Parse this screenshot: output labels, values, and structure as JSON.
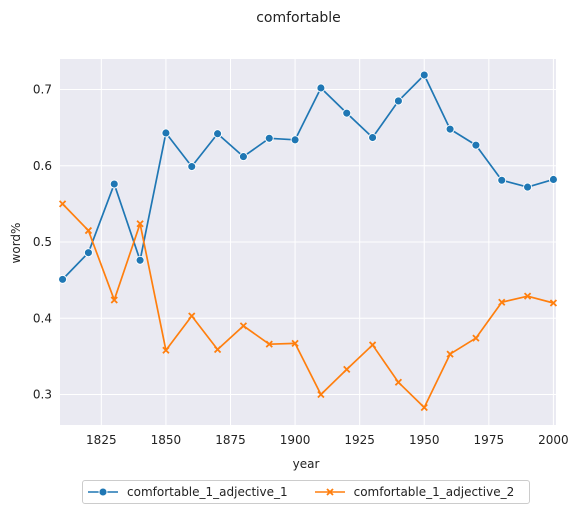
{
  "chart_data": {
    "type": "line",
    "title": "comfortable",
    "xlabel": "year",
    "ylabel": "word%",
    "x": [
      1810,
      1820,
      1830,
      1840,
      1850,
      1860,
      1870,
      1880,
      1890,
      1900,
      1910,
      1920,
      1930,
      1940,
      1950,
      1960,
      1970,
      1980,
      1990,
      2000
    ],
    "xlim": [
      1809,
      2001
    ],
    "ylim": [
      0.26,
      0.74
    ],
    "xticks": [
      1825,
      1850,
      1875,
      1900,
      1925,
      1950,
      1975,
      2000
    ],
    "yticks": [
      0.3,
      0.4,
      0.5,
      0.6,
      0.7
    ],
    "xtick_labels": [
      "1825",
      "1850",
      "1875",
      "1900",
      "1925",
      "1950",
      "1975",
      "2000"
    ],
    "ytick_labels": [
      "0.3",
      "0.4",
      "0.5",
      "0.6",
      "0.7"
    ],
    "grid": true,
    "legend_position": "bottom-center",
    "series": [
      {
        "name": "comfortable_1_adjective_1",
        "color": "#1f77b4",
        "marker": "circle",
        "values": [
          0.451,
          0.486,
          0.576,
          0.476,
          0.643,
          0.599,
          0.642,
          0.612,
          0.636,
          0.634,
          0.702,
          0.669,
          0.637,
          0.685,
          0.719,
          0.648,
          0.627,
          0.581,
          0.572,
          0.582
        ]
      },
      {
        "name": "comfortable_1_adjective_2",
        "color": "#ff7f0e",
        "marker": "x",
        "values": [
          0.55,
          0.515,
          0.424,
          0.524,
          0.358,
          0.403,
          0.359,
          0.39,
          0.366,
          0.367,
          0.3,
          0.333,
          0.365,
          0.316,
          0.283,
          0.353,
          0.374,
          0.421,
          0.429,
          0.42
        ]
      }
    ]
  }
}
